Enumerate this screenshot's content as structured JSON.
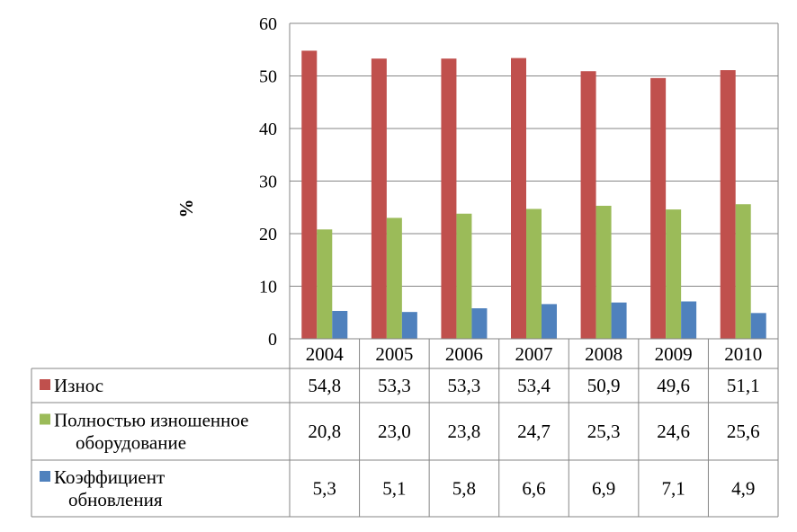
{
  "chart_data": {
    "type": "bar",
    "title": "",
    "xlabel": "",
    "ylabel": "%",
    "ylim": [
      0,
      60
    ],
    "yticks": [
      0,
      10,
      20,
      30,
      40,
      50,
      60
    ],
    "grid": true,
    "legend": "data-table-below",
    "categories": [
      "2004",
      "2005",
      "2006",
      "2007",
      "2008",
      "2009",
      "2010"
    ],
    "series": [
      {
        "name": "Износ",
        "color": "#C0504D",
        "values": [
          54.8,
          53.3,
          53.3,
          53.4,
          50.9,
          49.6,
          51.1
        ],
        "labels": [
          "54,8",
          "53,3",
          "53,3",
          "53,4",
          "50,9",
          "49,6",
          "51,1"
        ]
      },
      {
        "name": "Полностью изношенное оборудование",
        "name_lines": [
          "Полностью изношенное",
          "оборудование"
        ],
        "color": "#9BBB59",
        "values": [
          20.8,
          23.0,
          23.8,
          24.7,
          25.3,
          24.6,
          25.6
        ],
        "labels": [
          "20,8",
          "23,0",
          "23,8",
          "24,7",
          "25,3",
          "24,6",
          "25,6"
        ]
      },
      {
        "name": "Коэффициент обновления",
        "name_lines": [
          "Коэффициент",
          "обновления"
        ],
        "color": "#4F81BD",
        "values": [
          5.3,
          5.1,
          5.8,
          6.6,
          6.9,
          7.1,
          4.9
        ],
        "labels": [
          "5,3",
          "5,1",
          "5,8",
          "6,6",
          "6,9",
          "7,1",
          "4,9"
        ]
      }
    ]
  }
}
